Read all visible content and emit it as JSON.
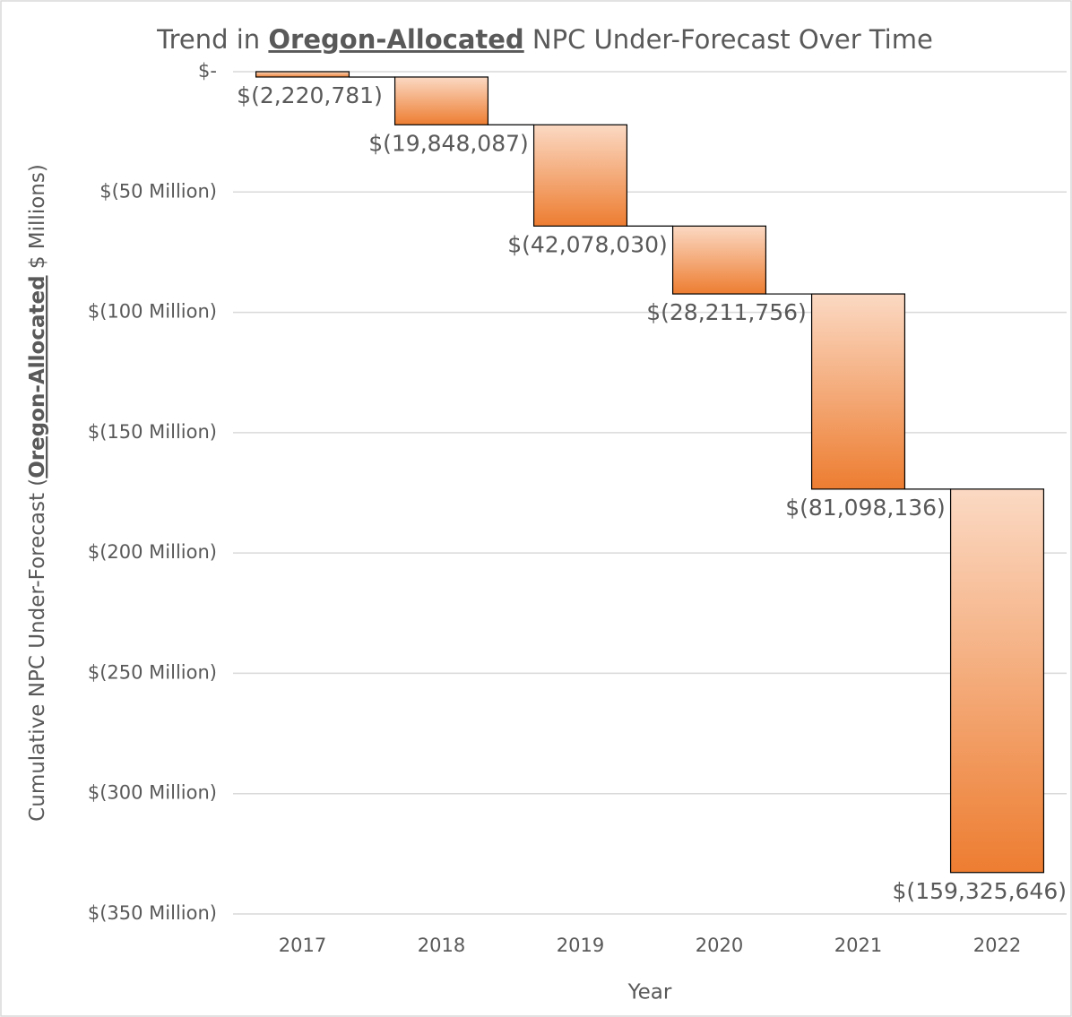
{
  "chart_data": {
    "type": "waterfall",
    "title": [
      "Trend in ",
      "Oregon-Allocated",
      " NPC Under-Forecast Over Time"
    ],
    "y_label": [
      "Cumulative NPC Under-Forecast (",
      "Oregon-Allocated",
      " $ Millions)"
    ],
    "x_label": "Year",
    "categories": [
      "2017",
      "2018",
      "2019",
      "2020",
      "2021",
      "2022"
    ],
    "values": [
      -2220781,
      -19848087,
      -42078030,
      -28211756,
      -81098136,
      -159325646
    ],
    "value_labels": [
      "$(2,220,781)",
      "$(19,848,087)",
      "$(42,078,030)",
      "$(28,211,756)",
      "$(81,098,136)",
      "$(159,325,646)"
    ],
    "color": "#ed7d31",
    "color_light": "#fbd9c3",
    "ylim": [
      -350000000,
      0
    ],
    "yticks": [
      {
        "value": 0,
        "label": "$-"
      },
      {
        "value": -50000000,
        "label": "$(50 Million)"
      },
      {
        "value": -100000000,
        "label": "$(100 Million)"
      },
      {
        "value": -150000000,
        "label": "$(150 Million)"
      },
      {
        "value": -200000000,
        "label": "$(200 Million)"
      },
      {
        "value": -250000000,
        "label": "$(250 Million)"
      },
      {
        "value": -300000000,
        "label": "$(300 Million)"
      },
      {
        "value": -350000000,
        "label": "$(350 Million)"
      }
    ],
    "grid": true
  }
}
